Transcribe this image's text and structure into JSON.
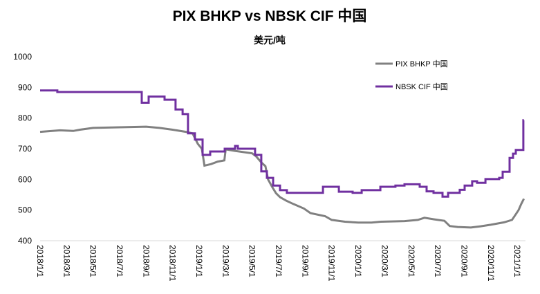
{
  "chart_data": {
    "type": "line",
    "title": "PIX BHKP vs NBSK CIF 中国",
    "subtitle": "美元/吨",
    "xlabel": "",
    "ylabel": "美元/吨",
    "x_unit": "months since 2018/1/1",
    "xlim": [
      0,
      36.5
    ],
    "ylim": [
      400,
      1000
    ],
    "yticks": [
      "400",
      "500",
      "600",
      "700",
      "800",
      "900",
      "1000"
    ],
    "xtick_labels": [
      "2018/1/1",
      "2018/3/1",
      "2018/5/1",
      "2018/7/1",
      "2018/9/1",
      "2018/11/1",
      "2019/1/1",
      "2019/3/1",
      "2019/5/1",
      "2019/7/1",
      "2019/9/1",
      "2019/11/1",
      "2020/1/1",
      "2020/3/1",
      "2020/5/1",
      "2020/7/1",
      "2020/9/1",
      "2020/11/1",
      "2021/1/1"
    ],
    "grid": false,
    "legend_position": "top-right",
    "series": [
      {
        "name": "PIX BHKP 中国",
        "color": "#808080",
        "points": [
          [
            0,
            755
          ],
          [
            1.5,
            760
          ],
          [
            2.5,
            758
          ],
          [
            3,
            762
          ],
          [
            4,
            768
          ],
          [
            6,
            770
          ],
          [
            8,
            772
          ],
          [
            9,
            768
          ],
          [
            10,
            762
          ],
          [
            11,
            755
          ],
          [
            11.5,
            750
          ],
          [
            11.9,
            716
          ],
          [
            12.2,
            700
          ],
          [
            12.4,
            645
          ],
          [
            12.9,
            650
          ],
          [
            13.4,
            658
          ],
          [
            13.9,
            662
          ],
          [
            14,
            698
          ],
          [
            14.7,
            693
          ],
          [
            16,
            685
          ],
          [
            16.3,
            675
          ],
          [
            16.7,
            655
          ],
          [
            17,
            643
          ],
          [
            17.2,
            600
          ],
          [
            17.5,
            576
          ],
          [
            17.8,
            555
          ],
          [
            18.1,
            542
          ],
          [
            18.6,
            530
          ],
          [
            19.1,
            520
          ],
          [
            19.9,
            505
          ],
          [
            20.4,
            490
          ],
          [
            21.5,
            480
          ],
          [
            22,
            468
          ],
          [
            23,
            462
          ],
          [
            24,
            459
          ],
          [
            25,
            459
          ],
          [
            25.7,
            462
          ],
          [
            26.5,
            463
          ],
          [
            27.5,
            464
          ],
          [
            28.5,
            468
          ],
          [
            29,
            475
          ],
          [
            29.7,
            470
          ],
          [
            30.5,
            465
          ],
          [
            30.9,
            448
          ],
          [
            31.5,
            445
          ],
          [
            32.5,
            443
          ],
          [
            33.2,
            447
          ],
          [
            34,
            452
          ],
          [
            35,
            460
          ],
          [
            35.6,
            468
          ],
          [
            35.9,
            487
          ],
          [
            36.1,
            500
          ],
          [
            36.3,
            520
          ],
          [
            36.5,
            537
          ]
        ]
      },
      {
        "name": "NBSK CIF 中国",
        "color": "#7030A0",
        "points": [
          [
            0,
            890
          ],
          [
            1.3,
            885
          ],
          [
            7.67,
            850
          ],
          [
            8.19,
            870
          ],
          [
            9.39,
            860
          ],
          [
            10.22,
            828
          ],
          [
            10.75,
            813
          ],
          [
            11.16,
            750
          ],
          [
            11.68,
            730
          ],
          [
            12.26,
            680
          ],
          [
            12.83,
            691
          ],
          [
            13.93,
            700
          ],
          [
            14.71,
            709
          ],
          [
            14.92,
            700
          ],
          [
            16.22,
            680
          ],
          [
            16.69,
            626
          ],
          [
            17.11,
            605
          ],
          [
            17.58,
            580
          ],
          [
            18.1,
            565
          ],
          [
            18.62,
            556
          ],
          [
            21.34,
            576
          ],
          [
            22.54,
            560
          ],
          [
            23.58,
            556
          ],
          [
            24.26,
            565
          ],
          [
            25.67,
            576
          ],
          [
            26.81,
            580
          ],
          [
            27.49,
            584
          ],
          [
            28.64,
            576
          ],
          [
            29.16,
            561
          ],
          [
            29.68,
            556
          ],
          [
            30.36,
            544
          ],
          [
            30.78,
            556
          ],
          [
            31.66,
            566
          ],
          [
            32.03,
            580
          ],
          [
            32.6,
            594
          ],
          [
            32.97,
            589
          ],
          [
            33.6,
            601
          ],
          [
            34.64,
            605
          ],
          [
            34.9,
            625
          ],
          [
            35.42,
            670
          ],
          [
            35.68,
            684
          ],
          [
            35.89,
            696
          ],
          [
            36.46,
            793
          ],
          [
            36.5,
            793
          ]
        ]
      }
    ]
  }
}
